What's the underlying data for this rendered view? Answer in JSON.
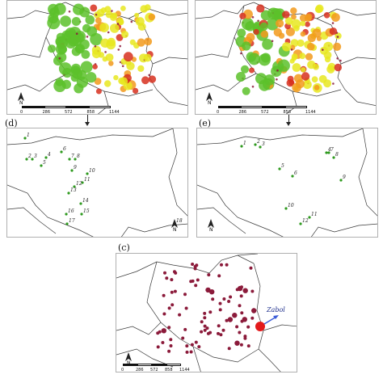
{
  "colors": {
    "border_line": "#3a3a3a",
    "station_green": "#2e9a1e",
    "dot_maroon": "#8b1a3a",
    "high_red": "#e31a1c",
    "zabol_arrow": "#3a5bd8",
    "intensity_green": "#5cc12a",
    "intensity_yellow": "#e8e820",
    "intensity_orange": "#f29a1c",
    "intensity_red": "#d7301f"
  },
  "scale_bar": {
    "ticks": [
      "0",
      "286",
      "572",
      "858",
      "1144 km"
    ]
  },
  "north_symbol": "N",
  "panels": {
    "a": {},
    "b": {},
    "d": {
      "label": "(d)",
      "station_numbers": [
        "1",
        "2",
        "3",
        "4",
        "5",
        "6",
        "7",
        "8",
        "9",
        "10",
        "11",
        "12",
        "13",
        "14",
        "15",
        "16",
        "17",
        "18"
      ]
    },
    "e": {
      "label": "(e)",
      "station_numbers": [
        "1",
        "2",
        "3",
        "4",
        "5",
        "6",
        "7",
        "8",
        "9",
        "10",
        "11",
        "12"
      ]
    },
    "c": {
      "label": "(c)",
      "annotation": "Zabol"
    }
  }
}
